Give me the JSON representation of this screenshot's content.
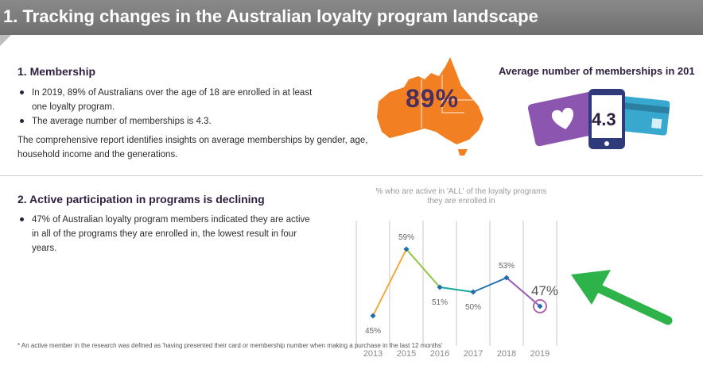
{
  "banner": {
    "title": "1. Tracking changes in the Australian loyalty program landscape"
  },
  "membership": {
    "heading": "1. Membership",
    "bullets": [
      "In 2019, 89% of Australians over the age of 18 are enrolled in at least one loyalty program.",
      "The average number of memberships is 4.3."
    ],
    "paragraph": "The comprehensive report identifies insights on average memberships by gender, age, household income and the generations.",
    "map_value": "89%",
    "avg_title": "Average number of memberships in 201",
    "avg_value": "4.3"
  },
  "participation": {
    "heading": "2. Active participation in programs is declining",
    "bullets": [
      "47% of Australian loyalty program members indicated they are active in all of the programs they are enrolled in, the lowest result in four years."
    ]
  },
  "chart_data": {
    "type": "line",
    "title": "% who are active in 'ALL' of the loyalty programs they are enrolled in",
    "categories": [
      "2013",
      "2015",
      "2016",
      "2017",
      "2018",
      "2019"
    ],
    "series": [
      {
        "values": [
          45,
          59,
          51,
          50,
          53,
          47
        ]
      }
    ],
    "data_labels": [
      "45%",
      "59%",
      "51%",
      "50%",
      "53%",
      "47%"
    ],
    "segment_colors": [
      "#f0a93c",
      "#8cc63f",
      "#1aa79c",
      "#1f73b7",
      "#9b59b6"
    ],
    "highlight_color": "#b266b2",
    "marker_color": "#1f6fa8",
    "ylim": [
      40,
      65
    ],
    "grid": "vertical"
  },
  "footnote": "* An active member in the research was defined as 'having presented their card or membership number when making a purchase in the last 12 months'",
  "colors": {
    "map": "#f28022",
    "card_purple": "#8b55b0",
    "card_blue": "#38a8cf",
    "phone": "#2f3a7a",
    "arrow": "#2db34a"
  }
}
